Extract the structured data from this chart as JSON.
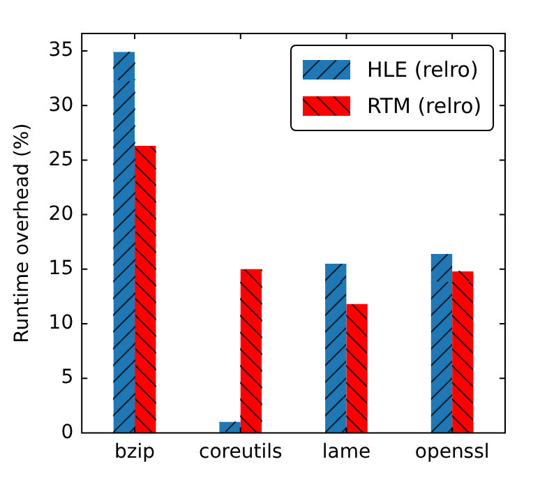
{
  "chart_data": {
    "type": "bar",
    "ylabel": "Runtime overhead (%)",
    "categories": [
      "bzip",
      "coreutils",
      "lame",
      "openssl"
    ],
    "series": [
      {
        "name": "HLE (relro)",
        "color": "#1f77b4",
        "values": [
          34.9,
          1.0,
          15.5,
          16.4
        ]
      },
      {
        "name": "RTM (relro)",
        "color": "#ff0000",
        "values": [
          26.3,
          15.0,
          11.8,
          14.8
        ]
      }
    ],
    "ylim": [
      0,
      36.6
    ],
    "yticks": [
      0,
      5,
      10,
      15,
      20,
      25,
      30,
      35
    ],
    "grid": false,
    "legend": "top right"
  }
}
